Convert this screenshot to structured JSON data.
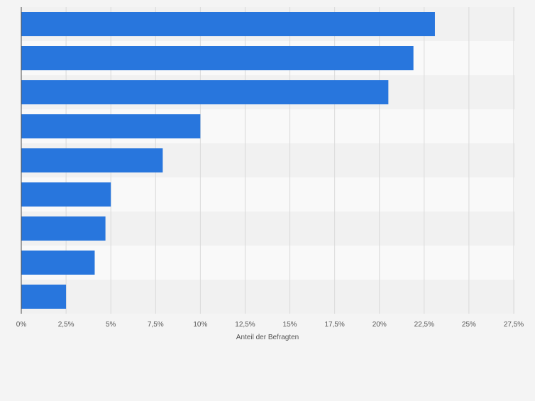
{
  "chart_data": {
    "type": "bar",
    "orientation": "horizontal",
    "title": "",
    "xlabel": "Anteil der Befragten",
    "ylabel": "",
    "categories": [
      "",
      "",
      "",
      "",
      "",
      "",
      "",
      "",
      ""
    ],
    "values": [
      23.1,
      21.9,
      20.5,
      10.0,
      7.9,
      5.0,
      4.7,
      4.1,
      2.5
    ],
    "xlim": [
      0,
      27.5
    ],
    "xticks": [
      0,
      2.5,
      5,
      7.5,
      10,
      12.5,
      15,
      17.5,
      20,
      22.5,
      25,
      27.5
    ],
    "xtick_labels": [
      "0%",
      "2,5%",
      "5%",
      "7,5%",
      "10%",
      "12,5%",
      "15%",
      "17,5%",
      "20%",
      "22,5%",
      "25%",
      "27,5%"
    ],
    "grid": "vertical",
    "legend": "none",
    "colors": {
      "bar": "#2876dd",
      "band_dark": "#f1f1f1",
      "band_light": "#f9f9f9",
      "grid": "#d9d9d9",
      "axis": "#4a4a4a",
      "tick_text": "#555555",
      "background": "#f4f4f4"
    }
  }
}
